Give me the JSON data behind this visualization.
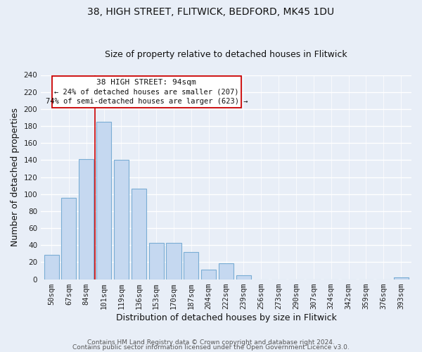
{
  "title": "38, HIGH STREET, FLITWICK, BEDFORD, MK45 1DU",
  "subtitle": "Size of property relative to detached houses in Flitwick",
  "xlabel": "Distribution of detached houses by size in Flitwick",
  "ylabel": "Number of detached properties",
  "bar_labels": [
    "50sqm",
    "67sqm",
    "84sqm",
    "101sqm",
    "119sqm",
    "136sqm",
    "153sqm",
    "170sqm",
    "187sqm",
    "204sqm",
    "222sqm",
    "239sqm",
    "256sqm",
    "273sqm",
    "290sqm",
    "307sqm",
    "324sqm",
    "342sqm",
    "359sqm",
    "376sqm",
    "393sqm"
  ],
  "bar_values": [
    29,
    96,
    141,
    185,
    140,
    106,
    43,
    43,
    32,
    11,
    19,
    5,
    0,
    0,
    0,
    0,
    0,
    0,
    0,
    0,
    2
  ],
  "bar_color": "#c5d8f0",
  "bar_edge_color": "#7aadd4",
  "ylim": [
    0,
    240
  ],
  "yticks": [
    0,
    20,
    40,
    60,
    80,
    100,
    120,
    140,
    160,
    180,
    200,
    220,
    240
  ],
  "vline_x_index": 3,
  "vline_color": "#cc0000",
  "annotation_title": "38 HIGH STREET: 94sqm",
  "annotation_line1": "← 24% of detached houses are smaller (207)",
  "annotation_line2": "74% of semi-detached houses are larger (623) →",
  "annotation_box_color": "#ffffff",
  "annotation_box_edge": "#cc0000",
  "footer1": "Contains HM Land Registry data © Crown copyright and database right 2024.",
  "footer2": "Contains public sector information licensed under the Open Government Licence v3.0.",
  "bg_color": "#e8eef7",
  "plot_bg_color": "#e8eef7",
  "grid_color": "#ffffff",
  "title_fontsize": 10,
  "subtitle_fontsize": 9,
  "axis_label_fontsize": 9,
  "tick_fontsize": 7.5,
  "footer_fontsize": 6.5,
  "annotation_title_fontsize": 8,
  "annotation_text_fontsize": 7.5
}
